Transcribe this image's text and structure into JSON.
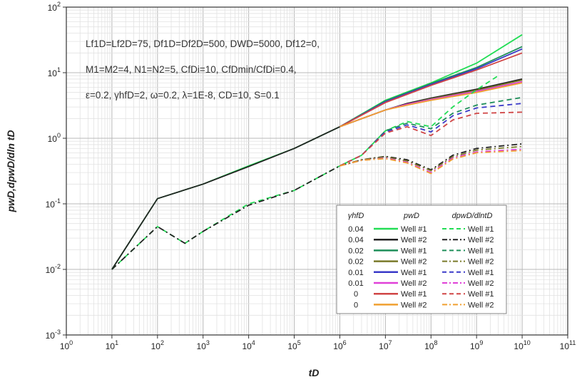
{
  "chart_data": {
    "type": "line",
    "xscale": "log",
    "yscale": "log",
    "xlim": [
      1,
      100000000000
    ],
    "ylim": [
      0.001,
      100
    ],
    "grid": true,
    "xlabel": "tD",
    "ylabel": "pwD,dpwD/dln tD",
    "x_ticks": [
      "10^0",
      "10^1",
      "10^2",
      "10^3",
      "10^4",
      "10^5",
      "10^6",
      "10^7",
      "10^8",
      "10^9",
      "10^10",
      "10^11"
    ],
    "y_ticks": [
      "10^-3",
      "10^-2",
      "10^-1",
      "10^0",
      "10^1",
      "10^2"
    ],
    "annotation_lines": [
      "Lf1D=Lf2D=75, Df1D=Df2D=500, DWD=5000, Df12=0,",
      "M1=M2=4, N1=N2=5, CfDi=10, CfDmin/CfDi=0.4,",
      "ε=0.2, γhfD=2, ω=0.2, λ=1E-8, CD=10, S=0.1"
    ],
    "legend": {
      "placement": "bottom-right",
      "headers": [
        "γhfD",
        "pwD",
        "dpwD/dlntD"
      ],
      "rows": [
        {
          "gamma": "0.04",
          "well": "Well #1",
          "color": "#22dd55"
        },
        {
          "gamma": "0.04",
          "well": "Well #2",
          "color": "#222222"
        },
        {
          "gamma": "0.02",
          "well": "Well #1",
          "color": "#1f8f5a"
        },
        {
          "gamma": "0.02",
          "well": "Well #2",
          "color": "#7a7a2a"
        },
        {
          "gamma": "0.01",
          "well": "Well #1",
          "color": "#3a3ac8"
        },
        {
          "gamma": "0.01",
          "well": "Well #2",
          "color": "#e040d8"
        },
        {
          "gamma": "0",
          "well": "Well #1",
          "color": "#d04545"
        },
        {
          "gamma": "0",
          "well": "Well #2",
          "color": "#f0a030"
        }
      ]
    },
    "series": [
      {
        "name": "0.04 Well #1 pwD",
        "color": "#22dd55",
        "dash": "solid",
        "x": [
          10,
          100,
          1000,
          10000,
          100000,
          1000000,
          10000000,
          100000000,
          1000000000,
          10000000000
        ],
        "y": [
          0.01,
          0.12,
          0.2,
          0.38,
          0.7,
          1.5,
          3.8,
          7.0,
          14.0,
          38.0
        ]
      },
      {
        "name": "0.04 Well #2 pwD",
        "color": "#222222",
        "dash": "solid",
        "x": [
          10,
          100,
          1000,
          10000,
          100000,
          1000000,
          10000000,
          30000000,
          100000000,
          1000000000,
          10000000000
        ],
        "y": [
          0.01,
          0.12,
          0.2,
          0.37,
          0.7,
          1.5,
          2.7,
          3.4,
          4.1,
          5.6,
          8.0
        ]
      },
      {
        "name": "0.02 Well #1 pwD",
        "color": "#1f8f5a",
        "dash": "solid",
        "x": [
          1000000,
          10000000,
          100000000,
          1000000000,
          10000000000
        ],
        "y": [
          1.5,
          3.7,
          6.8,
          12.0,
          25.0
        ]
      },
      {
        "name": "0.02 Well #2 pwD",
        "color": "#7a7a2a",
        "dash": "solid",
        "x": [
          1000000,
          10000000,
          30000000,
          100000000,
          1000000000,
          10000000000
        ],
        "y": [
          1.5,
          2.7,
          3.3,
          4.0,
          5.4,
          7.7
        ]
      },
      {
        "name": "0.01 Well #1 pwD",
        "color": "#3a3ac8",
        "dash": "solid",
        "x": [
          1000000,
          10000000,
          100000000,
          1000000000,
          10000000000
        ],
        "y": [
          1.5,
          3.6,
          6.6,
          11.5,
          23.0
        ]
      },
      {
        "name": "0.01 Well #2 pwD",
        "color": "#e040d8",
        "dash": "solid",
        "x": [
          1000000,
          10000000,
          30000000,
          100000000,
          1000000000,
          10000000000
        ],
        "y": [
          1.5,
          2.7,
          3.3,
          3.9,
          5.2,
          7.3
        ]
      },
      {
        "name": "0 Well #1 pwD",
        "color": "#d04545",
        "dash": "solid",
        "x": [
          1000000,
          10000000,
          100000000,
          1000000000,
          10000000000
        ],
        "y": [
          1.5,
          3.5,
          6.4,
          11.0,
          20.0
        ]
      },
      {
        "name": "0 Well #2 pwD",
        "color": "#f0a030",
        "dash": "solid",
        "x": [
          1000000,
          10000000,
          30000000,
          100000000,
          1000000000,
          10000000000
        ],
        "y": [
          1.5,
          2.7,
          3.2,
          3.8,
          5.0,
          7.0
        ]
      },
      {
        "name": "0.04 Well #1 dpwD/dlntD",
        "color": "#22dd55",
        "dash": "dash",
        "x": [
          10,
          100,
          400,
          1000,
          10000,
          100000,
          1000000,
          3000000,
          10000000,
          30000000,
          100000000,
          300000000,
          1000000000,
          3000000000
        ],
        "y": [
          0.01,
          0.045,
          0.025,
          0.038,
          0.1,
          0.16,
          0.38,
          0.55,
          1.3,
          1.8,
          1.5,
          3.0,
          5.5,
          9.0
        ]
      },
      {
        "name": "0.04 Well #2 dpwD/dlntD",
        "color": "#222222",
        "dash": "dashdot",
        "x": [
          10,
          100,
          400,
          1000,
          10000,
          100000,
          1000000,
          3000000,
          10000000,
          30000000,
          100000000,
          300000000,
          1000000000,
          10000000000
        ],
        "y": [
          0.01,
          0.045,
          0.025,
          0.038,
          0.095,
          0.16,
          0.38,
          0.47,
          0.53,
          0.47,
          0.33,
          0.55,
          0.7,
          0.82
        ]
      },
      {
        "name": "0.02 Well #1 dpwD/dlntD",
        "color": "#1f8f5a",
        "dash": "dash",
        "x": [
          1000000,
          3000000,
          10000000,
          30000000,
          100000000,
          300000000,
          1000000000,
          10000000000
        ],
        "y": [
          0.38,
          0.55,
          1.3,
          1.7,
          1.4,
          2.4,
          3.2,
          4.2
        ]
      },
      {
        "name": "0.02 Well #2 dpwD/dlntD",
        "color": "#7a7a2a",
        "dash": "dashdot",
        "x": [
          1000000,
          3000000,
          10000000,
          30000000,
          100000000,
          300000000,
          1000000000,
          10000000000
        ],
        "y": [
          0.38,
          0.47,
          0.52,
          0.45,
          0.32,
          0.52,
          0.66,
          0.75
        ]
      },
      {
        "name": "0.01 Well #1 dpwD/dlntD",
        "color": "#3a3ac8",
        "dash": "dash",
        "x": [
          1000000,
          3000000,
          10000000,
          30000000,
          100000000,
          300000000,
          1000000000,
          10000000000
        ],
        "y": [
          0.38,
          0.55,
          1.25,
          1.6,
          1.25,
          2.2,
          2.9,
          3.4
        ]
      },
      {
        "name": "0.01 Well #2 dpwD/dlntD",
        "color": "#e040d8",
        "dash": "dashdot",
        "x": [
          1000000,
          3000000,
          10000000,
          30000000,
          100000000,
          300000000,
          1000000000,
          10000000000
        ],
        "y": [
          0.38,
          0.46,
          0.5,
          0.43,
          0.3,
          0.5,
          0.62,
          0.68
        ]
      },
      {
        "name": "0 Well #1 dpwD/dlntD",
        "color": "#d04545",
        "dash": "dash",
        "x": [
          1000000,
          3000000,
          10000000,
          30000000,
          100000000,
          300000000,
          1000000000,
          10000000000
        ],
        "y": [
          0.38,
          0.55,
          1.2,
          1.5,
          1.1,
          1.9,
          2.4,
          2.5
        ]
      },
      {
        "name": "0 Well #2 dpwD/dlntD",
        "color": "#f0a030",
        "dash": "dashdot",
        "x": [
          1000000,
          3000000,
          10000000,
          30000000,
          100000000,
          300000000,
          1000000000,
          10000000000
        ],
        "y": [
          0.38,
          0.46,
          0.49,
          0.42,
          0.29,
          0.48,
          0.6,
          0.65
        ]
      }
    ]
  }
}
